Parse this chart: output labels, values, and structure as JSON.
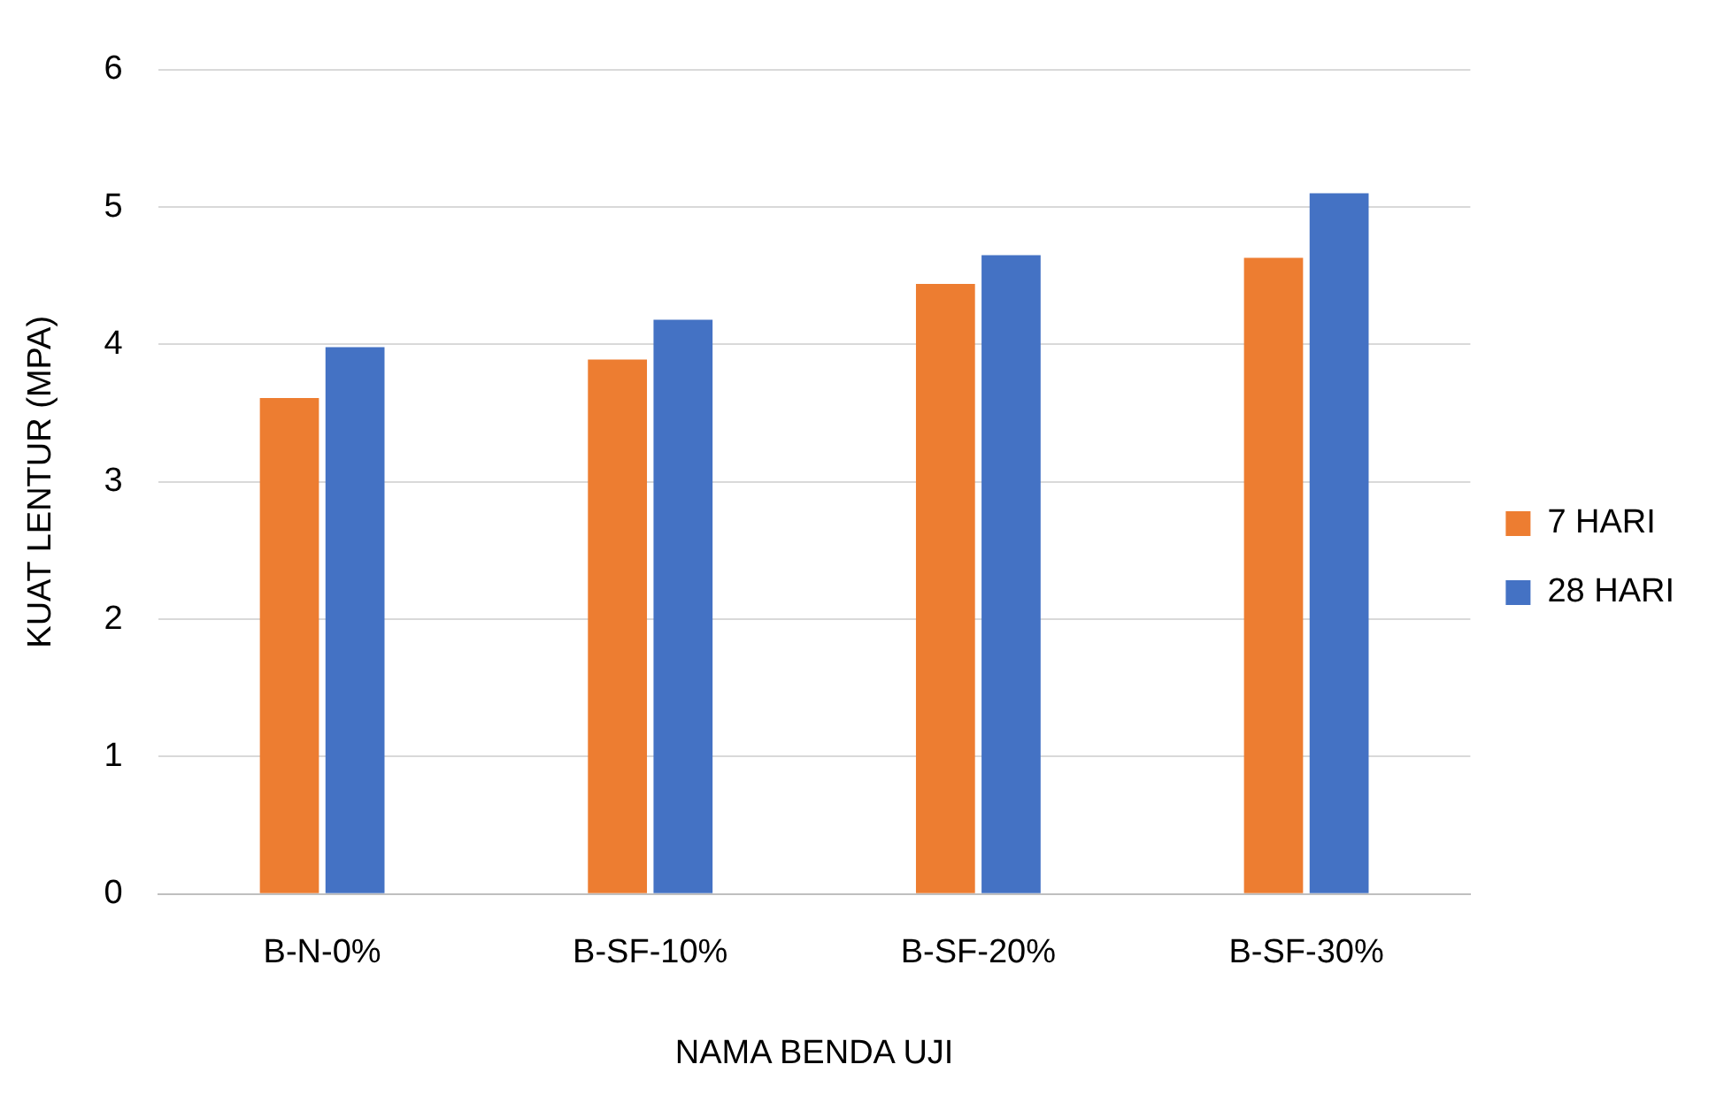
{
  "chart_data": {
    "type": "bar",
    "xlabel": "NAMA BENDA UJI",
    "ylabel": "KUAT LENTUR (MPA)",
    "categories": [
      "B-N-0%",
      "B-SF-10%",
      "B-SF-20%",
      "B-SF-30%"
    ],
    "series": [
      {
        "name": "7 HARI",
        "color": "#ed7d31",
        "values": [
          3.61,
          3.89,
          4.44,
          4.63
        ]
      },
      {
        "name": "28 HARI",
        "color": "#4472c4",
        "values": [
          3.98,
          4.18,
          4.65,
          5.1
        ]
      }
    ],
    "ylim": [
      0,
      6
    ],
    "yticks": [
      0,
      1,
      2,
      3,
      4,
      5,
      6
    ],
    "grid": "y",
    "legend": "right"
  }
}
